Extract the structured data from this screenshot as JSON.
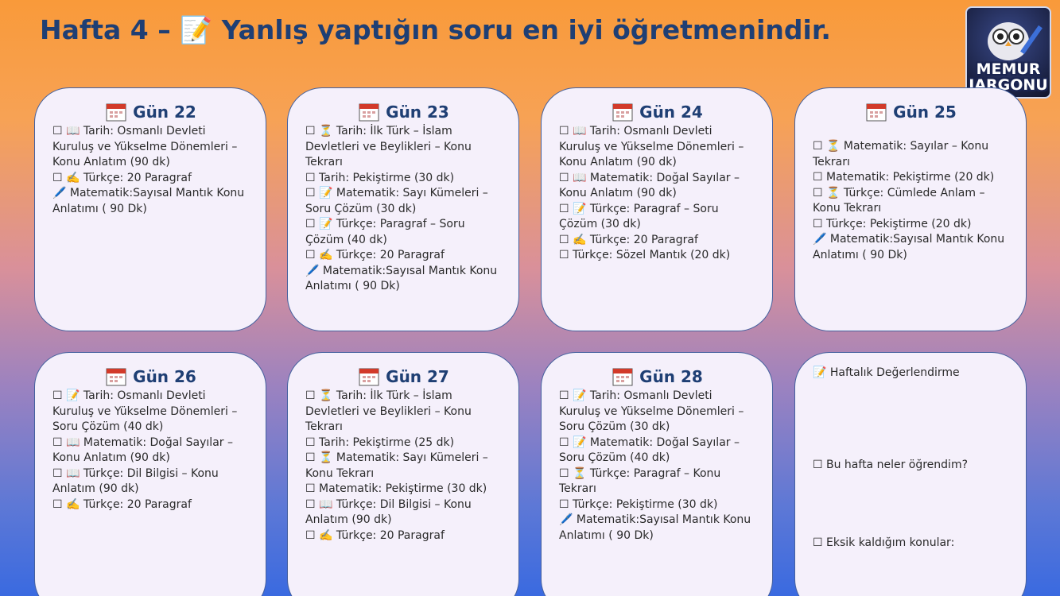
{
  "header": {
    "title": "Hafta 4 – 📝 Yanlış yaptığın soru en iyi öğretmenindir."
  },
  "logo": {
    "line1": "MEMUR",
    "line2": "JARGONU"
  },
  "days": [
    {
      "title": "Gün 22",
      "items": [
        "☐ 📖 Tarih: Osmanlı Devleti Kuruluş ve Yükselme Dönemleri – Konu Anlatım (90 dk)",
        "☐ ✍️ Türkçe: 20 Paragraf",
        "🖊️ Matematik:Sayısal Mantık Konu Anlatımı ( 90 Dk)"
      ]
    },
    {
      "title": "Gün 23",
      "items": [
        "☐ ⏳ Tarih: İlk Türk – İslam Devletleri ve Beylikleri – Konu Tekrarı",
        "☐ Tarih: Pekiştirme (30 dk)",
        "☐ 📝 Matematik: Sayı Kümeleri – Soru Çözüm (30 dk)",
        "☐ 📝 Türkçe: Paragraf – Soru Çözüm (40 dk)",
        "☐ ✍️ Türkçe: 20 Paragraf",
        "🖊️ Matematik:Sayısal Mantık Konu Anlatımı ( 90 Dk)"
      ]
    },
    {
      "title": "Gün 24",
      "items": [
        "☐ 📖 Tarih: Osmanlı Devleti Kuruluş ve Yükselme Dönemleri – Konu Anlatım (90 dk)",
        "☐ 📖 Matematik: Doğal Sayılar – Konu Anlatım (90 dk)",
        "☐ 📝 Türkçe: Paragraf – Soru Çözüm (30 dk)",
        "☐ ✍️ Türkçe: 20 Paragraf",
        "☐ Türkçe: Sözel Mantık (20 dk)"
      ]
    },
    {
      "title": "Gün 25",
      "items": [
        "☐ ⏳ Matematik: Sayılar – Konu Tekrarı",
        "☐ Matematik: Pekiştirme (20 dk)",
        "☐ ⏳ Türkçe: Cümlede Anlam – Konu Tekrarı",
        "☐ Türkçe: Pekiştirme (20 dk)",
        "🖊️ Matematik:Sayısal Mantık Konu Anlatımı ( 90 Dk)"
      ]
    },
    {
      "title": "Gün 26",
      "items": [
        "☐ 📝 Tarih: Osmanlı Devleti Kuruluş ve Yükselme Dönemleri – Soru Çözüm (40 dk)",
        "☐ 📖 Matematik: Doğal Sayılar – Konu Anlatım (90 dk)",
        "☐ 📖 Türkçe: Dil Bilgisi – Konu Anlatım (90 dk)",
        "☐ ✍️ Türkçe: 20 Paragraf"
      ]
    },
    {
      "title": "Gün 27",
      "items": [
        "☐ ⏳ Tarih: İlk Türk – İslam Devletleri ve Beylikleri – Konu Tekrarı",
        "☐ Tarih: Pekiştirme (25 dk)",
        "☐ ⏳ Matematik: Sayı Kümeleri – Konu Tekrarı",
        "☐ Matematik: Pekiştirme (30 dk)",
        "☐ 📖 Türkçe: Dil Bilgisi – Konu Anlatım (90 dk)",
        "☐ ✍️ Türkçe: 20 Paragraf"
      ]
    },
    {
      "title": "Gün 28",
      "items": [
        "☐ 📝 Tarih: Osmanlı Devleti Kuruluş ve Yükselme Dönemleri – Soru Çözüm (30 dk)",
        "☐ 📝 Matematik: Doğal Sayılar – Soru Çözüm (40 dk)",
        "☐ ⏳ Türkçe: Paragraf – Konu Tekrarı",
        "☐ Türkçe: Pekiştirme (30 dk)",
        "🖊️ Matematik:Sayısal Mantık Konu Anlatımı ( 90 Dk)"
      ]
    }
  ],
  "review": {
    "title": "📝 Haftalık Değerlendirme",
    "items": [
      "☐ Bu hafta neler öğrendim?",
      "☐ Eksik kaldığım konular:"
    ]
  }
}
